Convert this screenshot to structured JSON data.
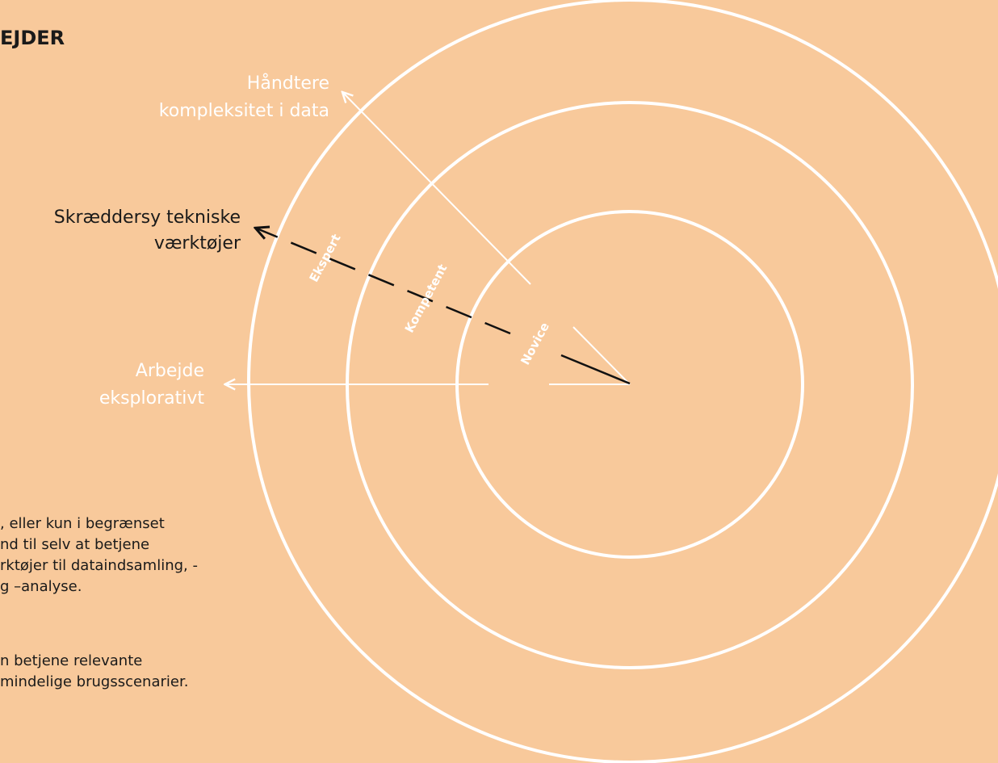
{
  "header": {
    "title": "EJDER"
  },
  "nodes": [
    {
      "label_lines": [
        "Håndtere",
        "kompleksitet i data"
      ]
    },
    {
      "label_lines": [
        "Skræddersy tekniske",
        "værktøjer"
      ]
    },
    {
      "label_lines": [
        "Arbejde",
        "eksplorativt"
      ]
    }
  ],
  "rings": [
    "Ekspert",
    "Kompetent",
    "Novice"
  ],
  "body": {
    "paragraphs": [
      [
        ", eller kun i begrænset",
        "nd til selv at betjene",
        "rktøjer til dataindsamling, -",
        "g –analyse."
      ],
      [
        "n betjene relevante",
        "mindelige brugsscenarier."
      ]
    ]
  }
}
